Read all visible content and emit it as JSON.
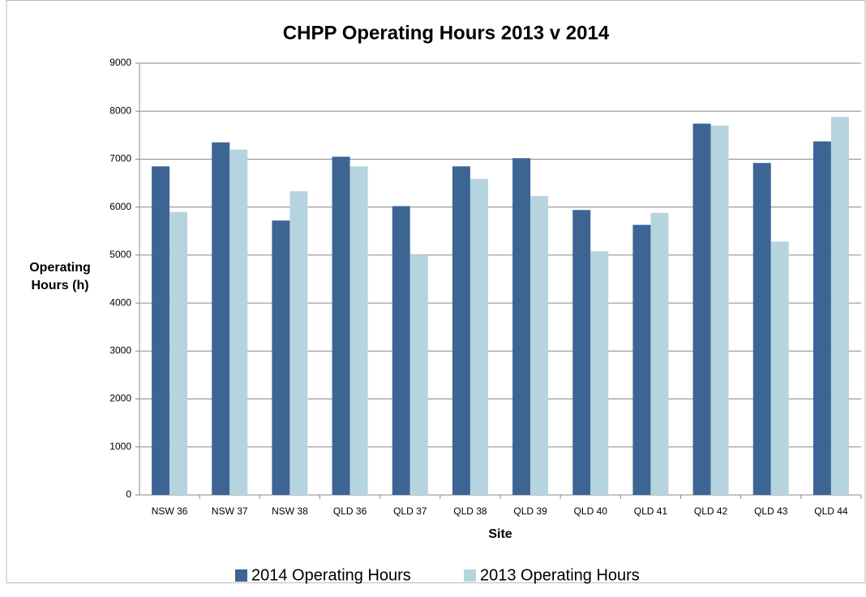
{
  "chart_data": {
    "type": "bar",
    "title": "CHPP Operating Hours 2013 v 2014",
    "xlabel": "Site",
    "ylabel": "Operating Hours (h)",
    "categories": [
      "NSW 36",
      "NSW 37",
      "NSW 38",
      "QLD 36",
      "QLD 37",
      "QLD 38",
      "QLD 39",
      "QLD 40",
      "QLD 41",
      "QLD 42",
      "QLD 43",
      "QLD 44"
    ],
    "series": [
      {
        "name": "2014 Operating Hours",
        "color": "#3d6594",
        "values": [
          6850,
          7350,
          5720,
          7050,
          6020,
          6850,
          7020,
          5940,
          5630,
          7740,
          6920,
          7370
        ]
      },
      {
        "name": "2013 Operating Hours",
        "color": "#b6d4df",
        "values": [
          5900,
          7200,
          6330,
          6850,
          5000,
          6590,
          6230,
          5080,
          5880,
          7700,
          5280,
          7880
        ]
      }
    ],
    "ylim": [
      0,
      9000
    ],
    "yticks": [
      0,
      1000,
      2000,
      3000,
      4000,
      5000,
      6000,
      7000,
      8000,
      9000
    ],
    "grid": true,
    "legend": "bottom"
  }
}
